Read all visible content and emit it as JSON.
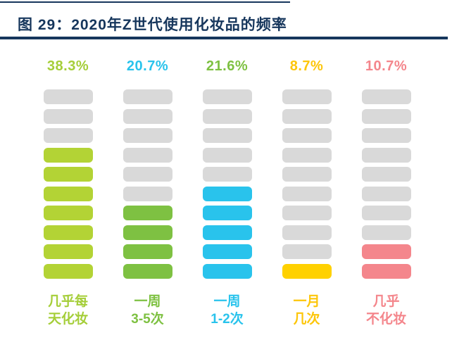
{
  "header": {
    "title": "图 29：2020年Z世代使用化妆品的频率",
    "accent_color": "#16365c"
  },
  "chart": {
    "total_segments": 10,
    "segment_empty_color": "#d9d9d9",
    "columns": [
      {
        "percent": "38.3%",
        "percent_color": "#a5ce39",
        "filled": 7,
        "fill_color": "#b3d335",
        "label_line1": "几乎每",
        "label_line2": "天化妆",
        "label_color": "#a5ce39"
      },
      {
        "percent": "20.7%",
        "percent_color": "#29c3ec",
        "filled": 4,
        "fill_color": "#7ec142",
        "label_line1": "一周",
        "label_line2": "3-5次",
        "label_color": "#7ec142"
      },
      {
        "percent": "21.6%",
        "percent_color": "#7ec142",
        "filled": 5,
        "fill_color": "#29c3ec",
        "label_line1": "一周",
        "label_line2": "1-2次",
        "label_color": "#29c3ec"
      },
      {
        "percent": "8.7%",
        "percent_color": "#fdc609",
        "filled": 1,
        "fill_color": "#ffd100",
        "label_line1": "一月",
        "label_line2": "几次",
        "label_color": "#fdc609"
      },
      {
        "percent": "10.7%",
        "percent_color": "#f4868c",
        "filled": 2,
        "fill_color": "#f4868c",
        "label_line1": "几乎",
        "label_line2": "不化妆",
        "label_color": "#f4868c"
      }
    ]
  },
  "chart_data": {
    "type": "bar",
    "title": "图 29：2020年Z世代使用化妆品的频率",
    "categories": [
      "几乎每天化妆",
      "一周3-5次",
      "一周1-2次",
      "一月几次",
      "几乎不化妆"
    ],
    "values": [
      38.3,
      20.7,
      21.6,
      8.7,
      10.7
    ],
    "unit": "%",
    "value_labels": [
      "38.3%",
      "20.7%",
      "21.6%",
      "8.7%",
      "10.7%"
    ],
    "segments_total_per_column": 10,
    "segments_filled": [
      7,
      4,
      5,
      1,
      2
    ],
    "bar_colors": [
      "#b3d335",
      "#7ec142",
      "#29c3ec",
      "#ffd100",
      "#f4868c"
    ],
    "value_label_colors": [
      "#a5ce39",
      "#29c3ec",
      "#7ec142",
      "#fdc609",
      "#f4868c"
    ],
    "empty_segment_color": "#d9d9d9",
    "grid": false,
    "legend": false,
    "ylim": [
      0,
      100
    ]
  }
}
